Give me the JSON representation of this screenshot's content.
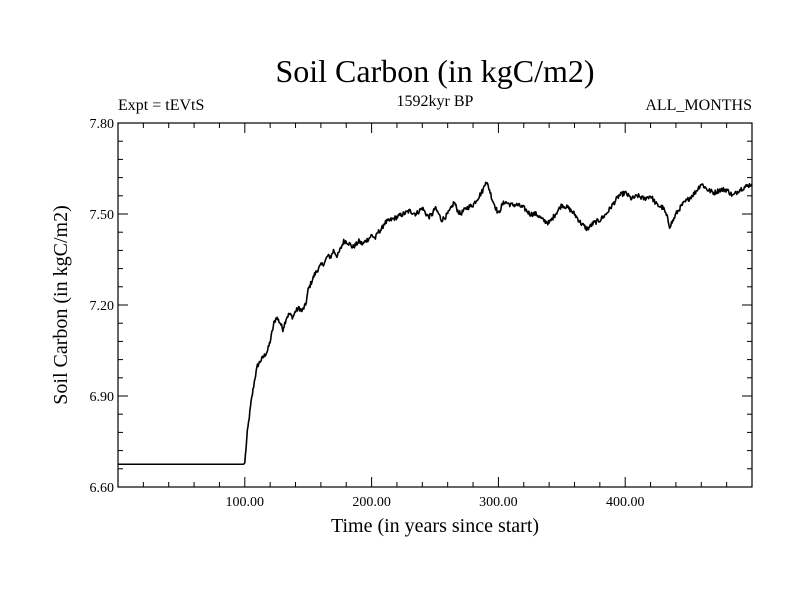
{
  "chart_data": {
    "type": "line",
    "title": "Soil Carbon (in kgC/m2)",
    "subtitle_left": "Expt = tEVtS",
    "subtitle_center": "1592kyr BP",
    "subtitle_right": "ALL_MONTHS",
    "xlabel": "Time (in years since start)",
    "ylabel": "Soil Carbon (in kgC/m2)",
    "xlim": [
      0,
      500
    ],
    "ylim": [
      6.6,
      7.8
    ],
    "xticks": [
      100,
      200,
      300,
      400
    ],
    "xtick_labels": [
      "100.00",
      "200.00",
      "300.00",
      "400.00"
    ],
    "yticks": [
      6.6,
      6.9,
      7.2,
      7.5,
      7.8
    ],
    "ytick_labels": [
      "6.60",
      "6.90",
      "7.20",
      "7.50",
      "7.80"
    ],
    "series": [
      {
        "name": "Soil Carbon",
        "color": "#000000",
        "x": [
          0,
          99,
          100,
          102,
          105,
          108,
          110,
          113,
          115,
          118,
          120,
          123,
          125,
          128,
          130,
          133,
          135,
          138,
          140,
          143,
          145,
          148,
          150,
          153,
          155,
          158,
          160,
          163,
          165,
          168,
          170,
          173,
          175,
          178,
          180,
          183,
          185,
          188,
          190,
          193,
          195,
          198,
          200,
          203,
          205,
          208,
          210,
          215,
          220,
          225,
          230,
          235,
          240,
          243,
          245,
          248,
          250,
          253,
          255,
          258,
          260,
          263,
          265,
          268,
          270,
          275,
          280,
          285,
          288,
          290,
          293,
          295,
          298,
          300,
          303,
          305,
          310,
          315,
          320,
          325,
          330,
          335,
          340,
          345,
          350,
          355,
          360,
          365,
          370,
          375,
          380,
          385,
          390,
          395,
          400,
          405,
          410,
          415,
          420,
          425,
          430,
          433,
          435,
          438,
          440,
          445,
          450,
          455,
          460,
          465,
          470,
          475,
          480,
          485,
          490,
          495,
          500
        ],
        "y": [
          6.675,
          6.675,
          6.68,
          6.78,
          6.88,
          6.96,
          7.0,
          7.02,
          7.03,
          7.05,
          7.08,
          7.14,
          7.16,
          7.14,
          7.12,
          7.16,
          7.17,
          7.16,
          7.18,
          7.19,
          7.18,
          7.2,
          7.25,
          7.28,
          7.3,
          7.32,
          7.33,
          7.34,
          7.36,
          7.36,
          7.38,
          7.36,
          7.38,
          7.41,
          7.41,
          7.4,
          7.39,
          7.4,
          7.41,
          7.4,
          7.41,
          7.42,
          7.43,
          7.42,
          7.44,
          7.45,
          7.47,
          7.48,
          7.49,
          7.5,
          7.51,
          7.5,
          7.52,
          7.5,
          7.49,
          7.5,
          7.52,
          7.5,
          7.48,
          7.49,
          7.5,
          7.52,
          7.54,
          7.51,
          7.5,
          7.52,
          7.53,
          7.56,
          7.58,
          7.61,
          7.58,
          7.55,
          7.52,
          7.5,
          7.53,
          7.54,
          7.53,
          7.53,
          7.52,
          7.5,
          7.5,
          7.48,
          7.47,
          7.5,
          7.53,
          7.52,
          7.5,
          7.47,
          7.45,
          7.47,
          7.48,
          7.5,
          7.53,
          7.56,
          7.57,
          7.55,
          7.56,
          7.55,
          7.56,
          7.53,
          7.52,
          7.49,
          7.46,
          7.48,
          7.5,
          7.53,
          7.55,
          7.57,
          7.6,
          7.58,
          7.57,
          7.58,
          7.58,
          7.56,
          7.58,
          7.59,
          7.6
        ]
      }
    ]
  }
}
